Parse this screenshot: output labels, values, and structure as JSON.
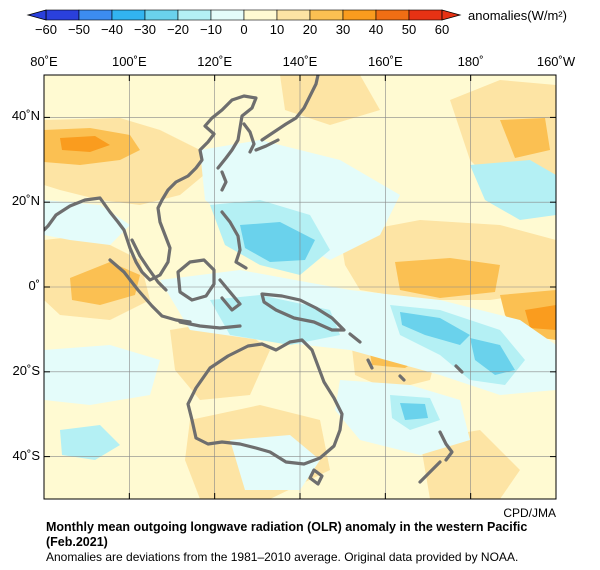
{
  "colorbar": {
    "tick_labels": [
      "−60",
      "−50",
      "−40",
      "−30",
      "−20",
      "−10",
      "0",
      "10",
      "20",
      "30",
      "40",
      "50",
      "60"
    ],
    "colors": [
      "#2a40dc",
      "#3c8cf0",
      "#32b4f0",
      "#6ad2ec",
      "#b4f0f4",
      "#e4fcfa",
      "#fffad2",
      "#fde4a4",
      "#fbc052",
      "#fa9c1e",
      "#f06e14",
      "#e63214"
    ],
    "units_label": "anomalies(W/m²)"
  },
  "axes": {
    "lon_labels": [
      "80˚E",
      "100˚E",
      "120˚E",
      "140˚E",
      "160˚E",
      "180˚",
      "160˚W"
    ],
    "lat_labels": [
      "40˚N",
      "20˚N",
      "0˚",
      "20˚S",
      "40˚S"
    ],
    "lon_range": [
      80,
      200
    ],
    "lat_range": [
      -50,
      50
    ],
    "grid": true
  },
  "credit": "CPD/JMA",
  "caption": {
    "title_line1": "Monthly mean outgoing longwave radiation (OLR) anomaly in the western Pacific",
    "title_line2": "(Feb.2021)",
    "note": "Anomalies are deviations from the 1981–2010 average. Original data provided by NOAA."
  },
  "map": {
    "coastline_color": "#6e6e6e",
    "background_color": "#fffad2"
  }
}
